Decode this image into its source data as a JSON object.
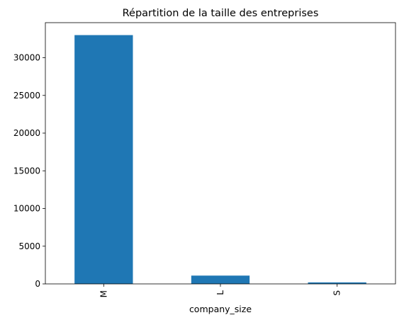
{
  "chart_data": {
    "type": "bar",
    "title": "Répartition de la taille des entreprises",
    "xlabel": "company_size",
    "ylabel": "",
    "categories": [
      "M",
      "L",
      "S"
    ],
    "values": [
      33000,
      1100,
      200
    ],
    "ylim": [
      0,
      34650
    ],
    "yticks": [
      0,
      5000,
      10000,
      15000,
      20000,
      25000,
      30000
    ],
    "ytick_labels": [
      "0",
      "5000",
      "10000",
      "15000",
      "20000",
      "25000",
      "30000"
    ],
    "grid": false,
    "legend": "none",
    "colors": {
      "bar": "#1f77b4",
      "axis": "#000000",
      "background": "#ffffff"
    }
  }
}
